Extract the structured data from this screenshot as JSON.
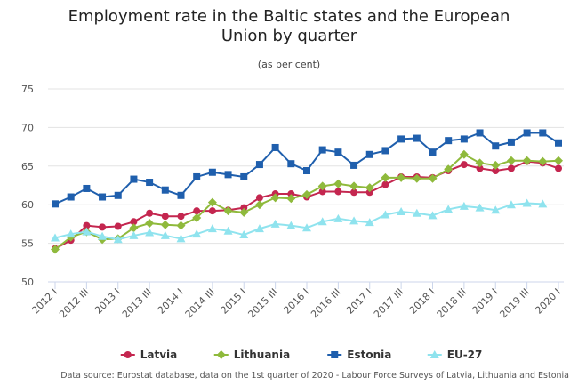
{
  "chart_data": {
    "type": "line",
    "title": "Employment rate in the Baltic states and the European Union by quarter",
    "subtitle": "(as per cent)",
    "source": "Data source: Eurostat database, data on the 1st quarter of 2020 - Labour Force Surveys of Latvia, Lithuania and Estonia",
    "categories": [
      "2012 I",
      null,
      "2012 III",
      null,
      "2013 I",
      null,
      "2013 III",
      null,
      "2014 I",
      null,
      "2014 III",
      null,
      "2015 I",
      null,
      "2015 III",
      null,
      "2016 I",
      null,
      "2016 III",
      null,
      "2017 I",
      null,
      "2017 III",
      null,
      "2018 I",
      null,
      "2018 III",
      null,
      "2019 I",
      null,
      "2019 III",
      null,
      "2020 I"
    ],
    "ylim": [
      50,
      75
    ],
    "yticks": [
      50,
      55,
      60,
      65,
      70,
      75
    ],
    "grid": true,
    "legend": "bottom",
    "series": [
      {
        "name": "Latvia",
        "color": "#c4264f",
        "marker": "circle",
        "values": [
          54.3,
          55.4,
          57.3,
          57.1,
          57.2,
          57.8,
          58.9,
          58.5,
          58.5,
          59.2,
          59.2,
          59.3,
          59.6,
          60.9,
          61.4,
          61.4,
          61.0,
          61.7,
          61.7,
          61.6,
          61.6,
          62.6,
          63.6,
          63.6,
          63.5,
          64.4,
          65.2,
          64.7,
          64.4,
          64.7,
          65.6,
          65.4,
          64.7
        ]
      },
      {
        "name": "Lithuania",
        "color": "#8fba3c",
        "marker": "diamond",
        "values": [
          54.2,
          55.8,
          56.5,
          55.5,
          55.6,
          57.0,
          57.6,
          57.4,
          57.3,
          58.3,
          60.3,
          59.2,
          59.0,
          60.0,
          60.9,
          60.8,
          61.3,
          62.4,
          62.7,
          62.4,
          62.2,
          63.5,
          63.5,
          63.4,
          63.4,
          64.6,
          66.5,
          65.4,
          65.1,
          65.7,
          65.7,
          65.6,
          65.7
        ]
      },
      {
        "name": "Estonia",
        "color": "#1f5fad",
        "marker": "square",
        "values": [
          60.1,
          61.0,
          62.1,
          61.0,
          61.2,
          63.3,
          62.9,
          61.9,
          61.2,
          63.6,
          64.2,
          63.9,
          63.6,
          65.2,
          67.4,
          65.3,
          64.4,
          67.1,
          66.8,
          65.1,
          66.5,
          67.0,
          68.5,
          68.6,
          66.8,
          68.3,
          68.5,
          69.3,
          67.6,
          68.1,
          69.3,
          69.3,
          68.0
        ]
      },
      {
        "name": "EU-27",
        "color": "#8fe3ee",
        "marker": "triangle",
        "values": [
          55.7,
          56.2,
          56.5,
          55.9,
          55.5,
          56.0,
          56.4,
          56.0,
          55.6,
          56.2,
          56.9,
          56.6,
          56.1,
          56.9,
          57.5,
          57.3,
          57.0,
          57.8,
          58.2,
          57.9,
          57.7,
          58.7,
          59.1,
          58.9,
          58.6,
          59.4,
          59.8,
          59.6,
          59.3,
          60.0,
          60.2,
          60.1,
          null
        ]
      }
    ]
  }
}
